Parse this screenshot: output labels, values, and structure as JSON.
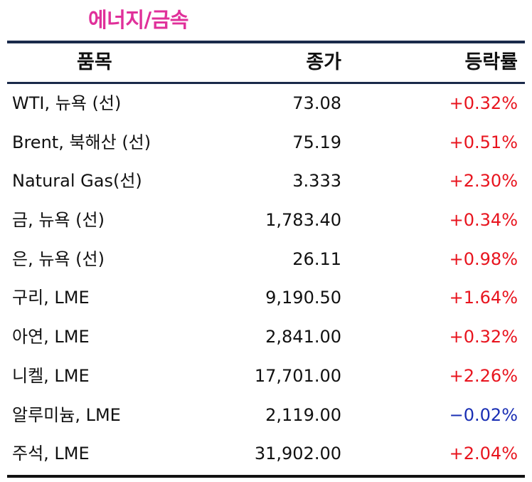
{
  "title": "에너지/금속",
  "colors": {
    "title": "#e0309a",
    "positive": "#e8141e",
    "negative": "#1a2fb4",
    "rule": "#1a2a4a"
  },
  "header": {
    "item": "품목",
    "price": "종가",
    "change": "등락률"
  },
  "rows": [
    {
      "item": "WTI, 뉴욕 (선)",
      "price": "73.08",
      "change": "+0.32%",
      "direction": "up"
    },
    {
      "item": "Brent, 북해산 (선)",
      "price": "75.19",
      "change": "+0.51%",
      "direction": "up"
    },
    {
      "item": "Natural Gas(선)",
      "price": "3.333",
      "change": "+2.30%",
      "direction": "up"
    },
    {
      "item": "금, 뉴욕  (선)",
      "price": "1,783.40",
      "change": "+0.34%",
      "direction": "up"
    },
    {
      "item": "은, 뉴욕  (선)",
      "price": "26.11",
      "change": "+0.98%",
      "direction": "up"
    },
    {
      "item": "구리, LME",
      "price": "9,190.50",
      "change": "+1.64%",
      "direction": "up"
    },
    {
      "item": "아연, LME",
      "price": "2,841.00",
      "change": "+0.32%",
      "direction": "up"
    },
    {
      "item": "니켈, LME",
      "price": "17,701.00",
      "change": "+2.26%",
      "direction": "up"
    },
    {
      "item": "알루미늄, LME",
      "price": "2,119.00",
      "change": "−0.02%",
      "direction": "down"
    },
    {
      "item": "주석, LME",
      "price": "31,902.00",
      "change": "+2.04%",
      "direction": "up"
    }
  ]
}
